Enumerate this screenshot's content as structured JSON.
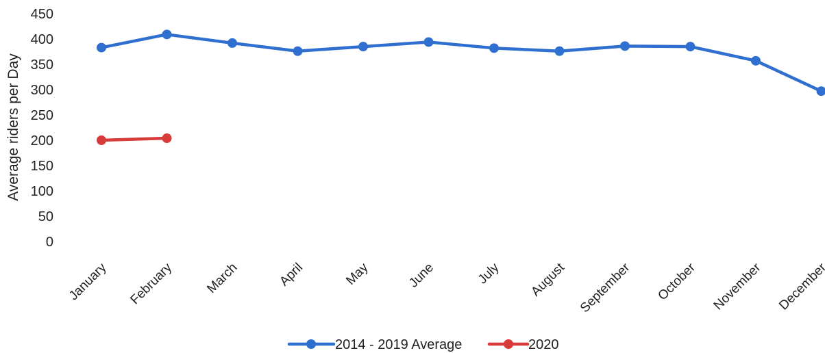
{
  "chart_data": {
    "type": "line",
    "categories": [
      "January",
      "February",
      "March",
      "April",
      "May",
      "June",
      "July",
      "August",
      "September",
      "October",
      "November",
      "December"
    ],
    "series": [
      {
        "name": "2014 - 2019 Average",
        "color": "#2F6FD0",
        "values": [
          383,
          409,
          392,
          376,
          385,
          394,
          382,
          376,
          386,
          385,
          357,
          297
        ]
      },
      {
        "name": "2020",
        "color": "#D93B3B",
        "values": [
          200,
          204,
          null,
          null,
          null,
          null,
          null,
          null,
          null,
          null,
          null,
          null
        ]
      }
    ],
    "title": "",
    "xlabel": "",
    "ylabel": "Average riders per Day",
    "ylim": [
      0,
      450
    ],
    "yticks": [
      0,
      50,
      100,
      150,
      200,
      250,
      300,
      350,
      400,
      450
    ],
    "grid": false,
    "legend_position": "bottom"
  }
}
